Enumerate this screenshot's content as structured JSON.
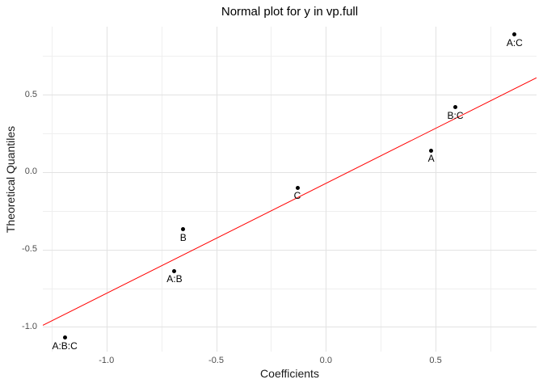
{
  "chart_data": {
    "type": "scatter",
    "title": "Normal plot for y in vp.full",
    "xlabel": "Coefficients",
    "ylabel": "Theoretical Quantiles",
    "xlim": [
      -1.29,
      0.96
    ],
    "ylim": [
      -1.16,
      0.94
    ],
    "grid": true,
    "legend": "none",
    "x_ticks": [
      {
        "value": -1.0,
        "label": "-1.0"
      },
      {
        "value": -0.5,
        "label": "-0.5"
      },
      {
        "value": 0.0,
        "label": "0.0"
      },
      {
        "value": 0.5,
        "label": "0.5"
      }
    ],
    "y_ticks": [
      {
        "value": -1.0,
        "label": "-1.0"
      },
      {
        "value": -0.5,
        "label": "-0.5"
      },
      {
        "value": 0.0,
        "label": "0.0"
      },
      {
        "value": 0.5,
        "label": "0.5"
      }
    ],
    "x_minor_ticks": [
      -1.25,
      -0.75,
      -0.25,
      0.25,
      0.75
    ],
    "y_minor_ticks": [
      -0.75,
      -0.25,
      0.25,
      0.75
    ],
    "points": [
      {
        "label": "A:B:C",
        "x": -1.19,
        "y": -1.07
      },
      {
        "label": "A:B",
        "x": -0.69,
        "y": -0.64
      },
      {
        "label": "B",
        "x": -0.65,
        "y": -0.37
      },
      {
        "label": "C",
        "x": -0.13,
        "y": -0.1
      },
      {
        "label": "A",
        "x": 0.48,
        "y": 0.14
      },
      {
        "label": "B:C",
        "x": 0.59,
        "y": 0.42
      },
      {
        "label": "A:C",
        "x": 0.86,
        "y": 0.89
      }
    ],
    "reference_line": {
      "x1": -1.29,
      "y1": -0.99,
      "x2": 0.96,
      "y2": 0.61
    },
    "colors": {
      "background": "#ffffff",
      "point": "#000000",
      "point_label": "#000000",
      "reference_line": "#ff0000",
      "grid_major": "#e2e2e2",
      "grid_minor": "#efefef",
      "tick_label": "#4d4d4d",
      "axis_title": "#1a1a1a",
      "title": "#000000"
    }
  }
}
